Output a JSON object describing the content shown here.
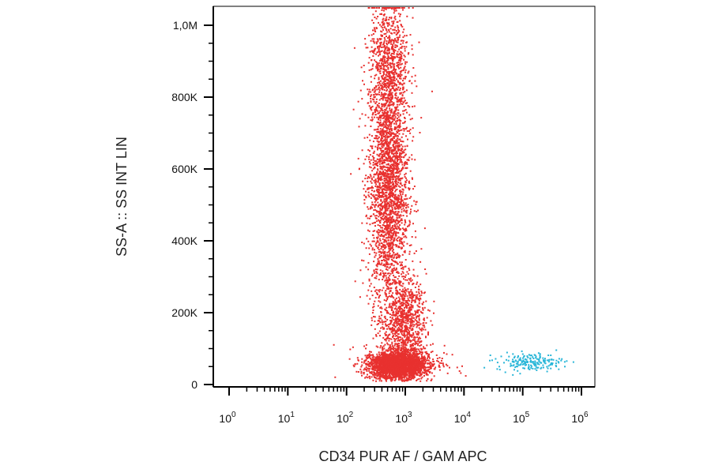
{
  "chart_data": {
    "type": "scatter",
    "title": "",
    "xlabel": "CD34 PUR AF / GAM APC",
    "ylabel": "SS-A :: SS INT LIN",
    "x_scale": "log",
    "xlim": [
      1,
      1000000
    ],
    "ylim": [
      0,
      1050000
    ],
    "x_ticks": [
      {
        "base": "10",
        "exp": "0",
        "value": 1
      },
      {
        "base": "10",
        "exp": "1",
        "value": 10
      },
      {
        "base": "10",
        "exp": "2",
        "value": 100
      },
      {
        "base": "10",
        "exp": "3",
        "value": 1000
      },
      {
        "base": "10",
        "exp": "4",
        "value": 10000
      },
      {
        "base": "10",
        "exp": "5",
        "value": 100000
      },
      {
        "base": "10",
        "exp": "6",
        "value": 1000000
      }
    ],
    "y_ticks": [
      {
        "label": "0",
        "value": 0
      },
      {
        "label": "200K",
        "value": 200000
      },
      {
        "label": "400K",
        "value": 400000
      },
      {
        "label": "600K",
        "value": 600000
      },
      {
        "label": "800K",
        "value": 800000
      },
      {
        "label": "1,0M",
        "value": 1000000
      }
    ],
    "grid": false,
    "legend": "none",
    "series": [
      {
        "color": "#e8312f",
        "clusters": [
          {
            "x_center": 500,
            "x_spread_decades": 0.17,
            "y_center": 560000,
            "y_spread": 180000,
            "count": 2600
          },
          {
            "x_center": 520,
            "x_spread_decades": 0.17,
            "y_center": 900000,
            "y_spread": 90000,
            "count": 700
          },
          {
            "x_center": 700,
            "x_spread_decades": 0.22,
            "y_center": 55000,
            "y_spread": 18000,
            "count": 2400
          },
          {
            "x_center": 950,
            "x_spread_decades": 0.18,
            "y_center": 180000,
            "y_spread": 60000,
            "count": 900
          },
          {
            "x_center": 900,
            "x_spread_decades": 0.35,
            "y_center": 60000,
            "y_spread": 25000,
            "count": 500
          }
        ]
      },
      {
        "color": "#29b6d8",
        "clusters": [
          {
            "x_center": 130000,
            "x_spread_decades": 0.28,
            "y_center": 65000,
            "y_spread": 12000,
            "count": 190
          }
        ]
      }
    ]
  }
}
